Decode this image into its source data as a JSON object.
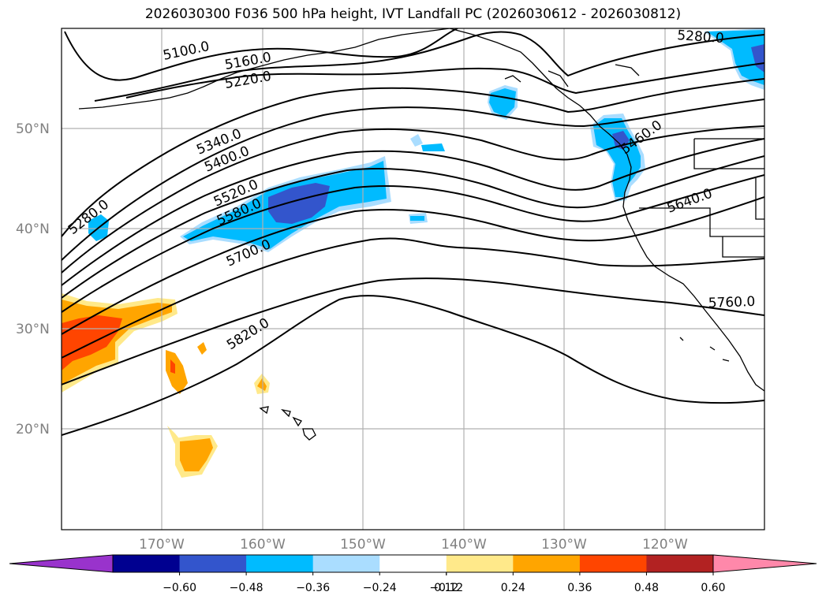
{
  "title": "2026030300 F036 500 hPa height, IVT Landfall PC (2026030612 - 2026030812)",
  "map": {
    "lat_labels": [
      "50°N",
      "40°N",
      "30°N",
      "20°N"
    ],
    "lat_values": [
      50,
      40,
      30,
      20
    ],
    "lon_labels": [
      "170°W",
      "160°W",
      "150°W",
      "140°W",
      "130°W",
      "120°W"
    ],
    "lon_values": [
      -170,
      -160,
      -150,
      -140,
      -130,
      -120
    ],
    "contour_labels": [
      {
        "text": "5100.0",
        "level": 5100
      },
      {
        "text": "5160.0",
        "level": 5160
      },
      {
        "text": "5220.0",
        "level": 5220
      },
      {
        "text": "5280.0",
        "level": 5280
      },
      {
        "text": "5280.0",
        "level": 5280
      },
      {
        "text": "5340.0",
        "level": 5340
      },
      {
        "text": "5400.0",
        "level": 5400
      },
      {
        "text": "5460.0",
        "level": 5460
      },
      {
        "text": "5520.0",
        "level": 5520
      },
      {
        "text": "5580.0",
        "level": 5580
      },
      {
        "text": "5640.0",
        "level": 5640
      },
      {
        "text": "5700.0",
        "level": 5700
      },
      {
        "text": "5760.0",
        "level": 5760
      },
      {
        "text": "5820.0",
        "level": 5820
      }
    ]
  },
  "colorbar": {
    "ticks": [
      "−0.60",
      "−0.48",
      "−0.36",
      "−0.24",
      "−0.12",
      "0.12",
      "0.24",
      "0.36",
      "0.48",
      "0.60"
    ],
    "colors": [
      "#9933cc",
      "#000090",
      "#3355cc",
      "#00bbff",
      "#aaddff",
      "#ffffff",
      "#ffe98a",
      "#ffa500",
      "#ff4500",
      "#b22222",
      "#ff88aa"
    ]
  }
}
